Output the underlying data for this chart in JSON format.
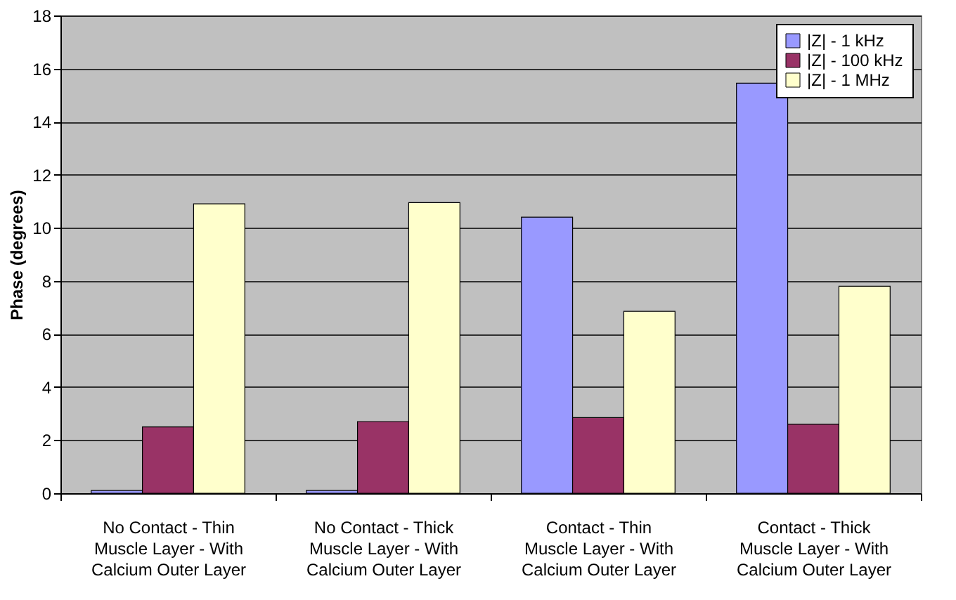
{
  "chart_data": {
    "type": "bar",
    "ylabel": "Phase (degrees)",
    "categories": [
      "No Contact - Thin Muscle Layer - With Calcium Outer Layer",
      "No Contact - Thick Muscle Layer - With Calcium Outer Layer",
      "Contact - Thin Muscle Layer - With Calcium Outer Layer",
      "Contact - Thick Muscle Layer - With Calcium Outer Layer"
    ],
    "series": [
      {
        "name": "|Z| - 1 kHz",
        "color": "#9999ff",
        "values": [
          0.1,
          0.1,
          10.4,
          15.45
        ]
      },
      {
        "name": "|Z| - 100 kHz",
        "color": "#993366",
        "values": [
          2.5,
          2.7,
          2.85,
          2.6
        ]
      },
      {
        "name": "|Z| - 1 MHz",
        "color": "#ffffcc",
        "values": [
          10.9,
          10.95,
          6.85,
          7.8
        ]
      }
    ],
    "ylim": [
      0,
      18
    ],
    "yticks": [
      0,
      2,
      4,
      6,
      8,
      10,
      12,
      14,
      16,
      18
    ],
    "grid": "y",
    "legend": "top right"
  }
}
